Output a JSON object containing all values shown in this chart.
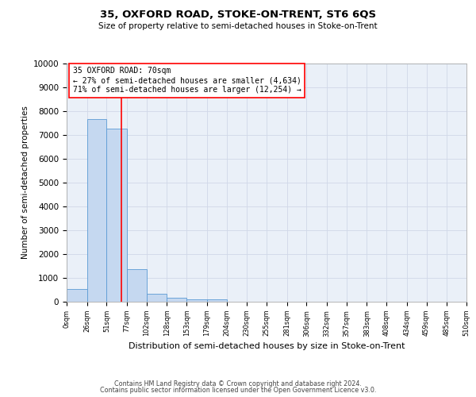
{
  "title": "35, OXFORD ROAD, STOKE-ON-TRENT, ST6 6QS",
  "subtitle": "Size of property relative to semi-detached houses in Stoke-on-Trent",
  "xlabel": "Distribution of semi-detached houses by size in Stoke-on-Trent",
  "ylabel": "Number of semi-detached properties",
  "footer1": "Contains HM Land Registry data © Crown copyright and database right 2024.",
  "footer2": "Contains public sector information licensed under the Open Government Licence v3.0.",
  "bar_edges": [
    0,
    26,
    51,
    77,
    102,
    128,
    153,
    179,
    204,
    230,
    255,
    281,
    306,
    332,
    357,
    383,
    408,
    434,
    459,
    485,
    510
  ],
  "bar_values": [
    530,
    7650,
    7280,
    1360,
    320,
    155,
    115,
    95,
    0,
    0,
    0,
    0,
    0,
    0,
    0,
    0,
    0,
    0,
    0,
    0
  ],
  "bar_color": "#c5d8f0",
  "bar_edgecolor": "#5b9bd5",
  "ylim": [
    0,
    10000
  ],
  "yticks": [
    0,
    1000,
    2000,
    3000,
    4000,
    5000,
    6000,
    7000,
    8000,
    9000,
    10000
  ],
  "xtick_labels": [
    "0sqm",
    "26sqm",
    "51sqm",
    "77sqm",
    "102sqm",
    "128sqm",
    "153sqm",
    "179sqm",
    "204sqm",
    "230sqm",
    "255sqm",
    "281sqm",
    "306sqm",
    "332sqm",
    "357sqm",
    "383sqm",
    "408sqm",
    "434sqm",
    "459sqm",
    "485sqm",
    "510sqm"
  ],
  "property_line_x": 70,
  "annotation_title": "35 OXFORD ROAD: 70sqm",
  "annotation_line1": "← 27% of semi-detached houses are smaller (4,634)",
  "annotation_line2": "71% of semi-detached houses are larger (12,254) →",
  "annotation_box_color": "white",
  "annotation_box_edgecolor": "red",
  "vline_color": "red",
  "grid_color": "#d0d8e8",
  "bg_color": "#eaf0f8"
}
